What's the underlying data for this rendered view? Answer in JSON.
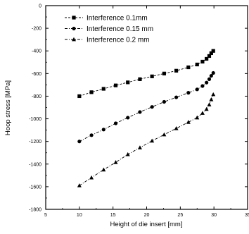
{
  "chart_data": {
    "type": "line",
    "title": "",
    "xlabel": "Height of die insert [mm]",
    "ylabel": "Hoop stress [MPa]",
    "xlim": [
      5,
      35
    ],
    "ylim": [
      -1800,
      0
    ],
    "xticks": [
      "5",
      "10",
      "15",
      "20",
      "25",
      "30",
      "35"
    ],
    "yticks": [
      "0",
      "-200",
      "-400",
      "-600",
      "-800",
      "-1000",
      "-1200",
      "-1400",
      "-1600",
      "-1800"
    ],
    "grid": false,
    "legend_position": "top-left",
    "series": [
      {
        "name": "Interference 0.1mm",
        "marker": "square",
        "line_style": "dashed",
        "x": [
          10,
          11.8,
          13.6,
          15.4,
          17.2,
          19,
          20.8,
          22.6,
          24.4,
          26.2,
          27.5,
          28.3,
          28.9,
          29.3,
          29.6,
          29.9
        ],
        "y": [
          -800,
          -765,
          -735,
          -705,
          -678,
          -650,
          -625,
          -600,
          -575,
          -545,
          -520,
          -495,
          -470,
          -445,
          -420,
          -400
        ]
      },
      {
        "name": "Interference 0.15 mm",
        "marker": "circle",
        "line_style": "dash-dot",
        "x": [
          10,
          11.8,
          13.6,
          15.4,
          17.2,
          19,
          20.8,
          22.6,
          24.4,
          26.2,
          27.5,
          28.3,
          28.9,
          29.3,
          29.6,
          29.9
        ],
        "y": [
          -1200,
          -1145,
          -1095,
          -1040,
          -990,
          -940,
          -895,
          -850,
          -810,
          -770,
          -740,
          -710,
          -680,
          -650,
          -620,
          -595
        ]
      },
      {
        "name": "Interference 0.2 mm",
        "marker": "triangle",
        "line_style": "dash-dot",
        "x": [
          10,
          11.8,
          13.6,
          15.4,
          17.2,
          19,
          20.8,
          22.6,
          24.4,
          26.2,
          27.5,
          28.3,
          28.9,
          29.3,
          29.6,
          29.9
        ],
        "y": [
          -1590,
          -1520,
          -1450,
          -1385,
          -1315,
          -1255,
          -1195,
          -1140,
          -1085,
          -1030,
          -990,
          -950,
          -915,
          -875,
          -830,
          -785
        ]
      }
    ]
  }
}
